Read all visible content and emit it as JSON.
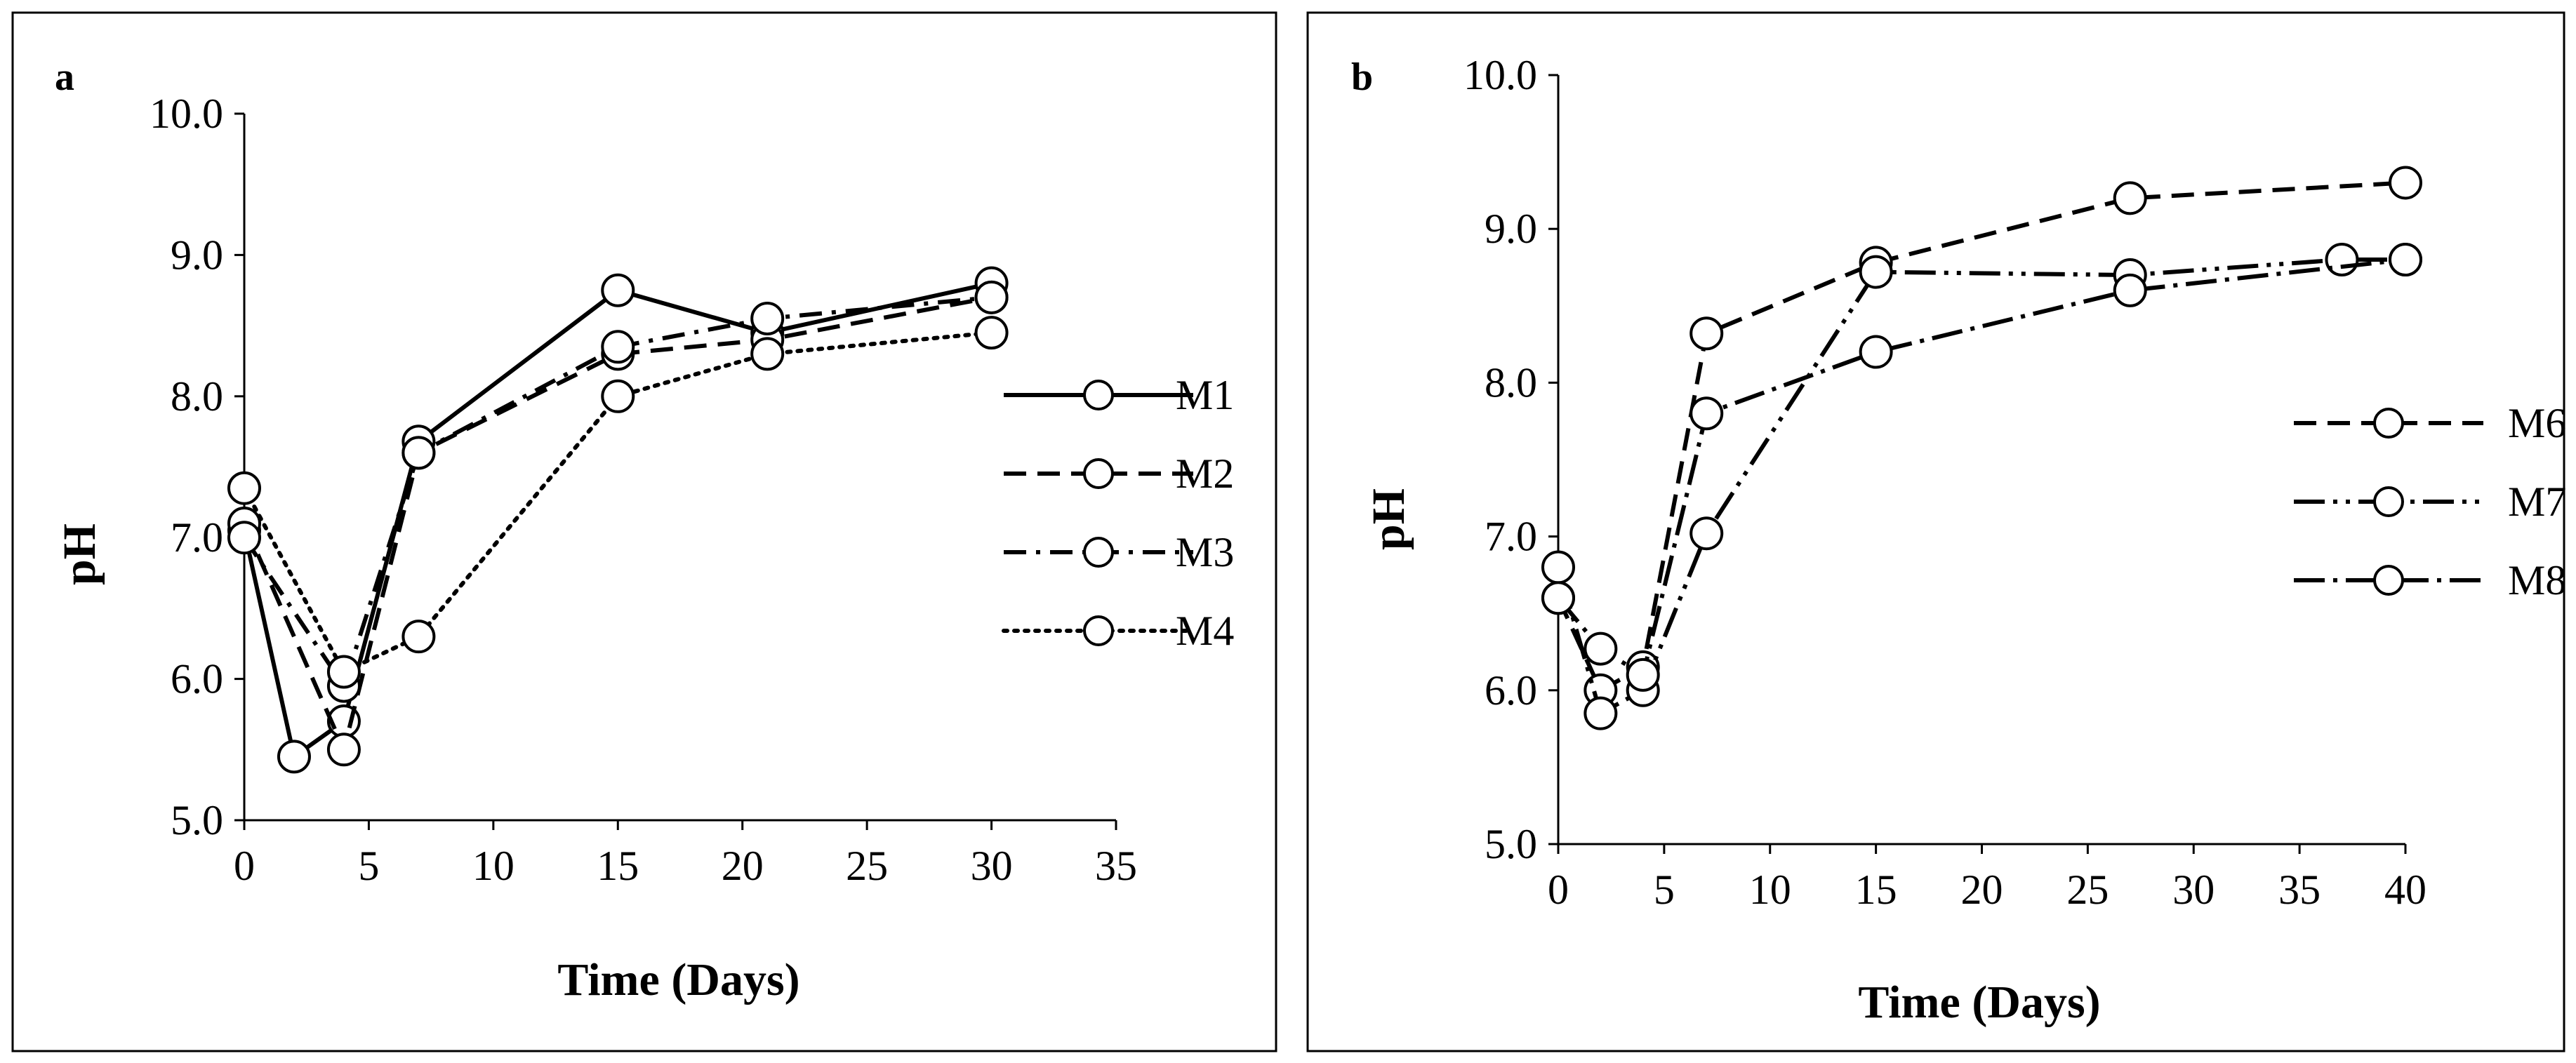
{
  "chart_data": [
    {
      "panel": "a",
      "type": "line",
      "xlabel": "Time (Days)",
      "ylabel": "pH",
      "xlim": [
        0,
        35
      ],
      "ylim": [
        5.0,
        10.0
      ],
      "xticks": [
        "0",
        "5",
        "10",
        "15",
        "20",
        "25",
        "30",
        "35"
      ],
      "yticks": [
        "5.0",
        "6.0",
        "7.0",
        "8.0",
        "9.0",
        "10.0"
      ],
      "legend_position": "right",
      "series": [
        {
          "name": "M1",
          "style": "solid",
          "x": [
            0,
            2,
            4,
            7,
            15,
            21,
            30
          ],
          "y": [
            7.05,
            5.45,
            5.7,
            7.68,
            8.75,
            8.45,
            8.8
          ]
        },
        {
          "name": "M2",
          "style": "dash",
          "x": [
            0,
            4,
            7,
            15,
            21,
            30
          ],
          "y": [
            7.1,
            5.5,
            7.6,
            8.3,
            8.4,
            8.7
          ]
        },
        {
          "name": "M3",
          "style": "dashdot",
          "x": [
            0,
            4,
            7,
            15,
            21,
            30
          ],
          "y": [
            7.0,
            5.95,
            7.6,
            8.35,
            8.55,
            8.7
          ]
        },
        {
          "name": "M4",
          "style": "dot",
          "x": [
            0,
            4,
            7,
            15,
            21,
            30
          ],
          "y": [
            7.35,
            6.05,
            6.3,
            8.0,
            8.3,
            8.45
          ]
        }
      ]
    },
    {
      "panel": "b",
      "type": "line",
      "xlabel": "Time (Days)",
      "ylabel": "pH",
      "xlim": [
        0,
        40
      ],
      "ylim": [
        5.0,
        10.0
      ],
      "xticks": [
        "0",
        "5",
        "10",
        "15",
        "20",
        "25",
        "30",
        "35",
        "40"
      ],
      "yticks": [
        "5.0",
        "6.0",
        "7.0",
        "8.0",
        "9.0",
        "10.0"
      ],
      "legend_position": "right",
      "series": [
        {
          "name": "M6",
          "style": "dash",
          "x": [
            0,
            2,
            4,
            7,
            15,
            27,
            40
          ],
          "y": [
            6.6,
            6.0,
            6.15,
            8.32,
            8.78,
            9.2,
            9.3
          ]
        },
        {
          "name": "M7",
          "style": "longdashdotdot",
          "x": [
            0,
            2,
            4,
            7,
            15,
            27,
            37,
            40
          ],
          "y": [
            6.8,
            5.85,
            6.0,
            7.02,
            8.72,
            8.7,
            8.8,
            8.8
          ]
        },
        {
          "name": "M8",
          "style": "longdashdot",
          "x": [
            0,
            2,
            4,
            7,
            15,
            27,
            40
          ],
          "y": [
            6.6,
            6.27,
            6.1,
            7.8,
            8.2,
            8.6,
            8.8
          ]
        }
      ]
    }
  ]
}
